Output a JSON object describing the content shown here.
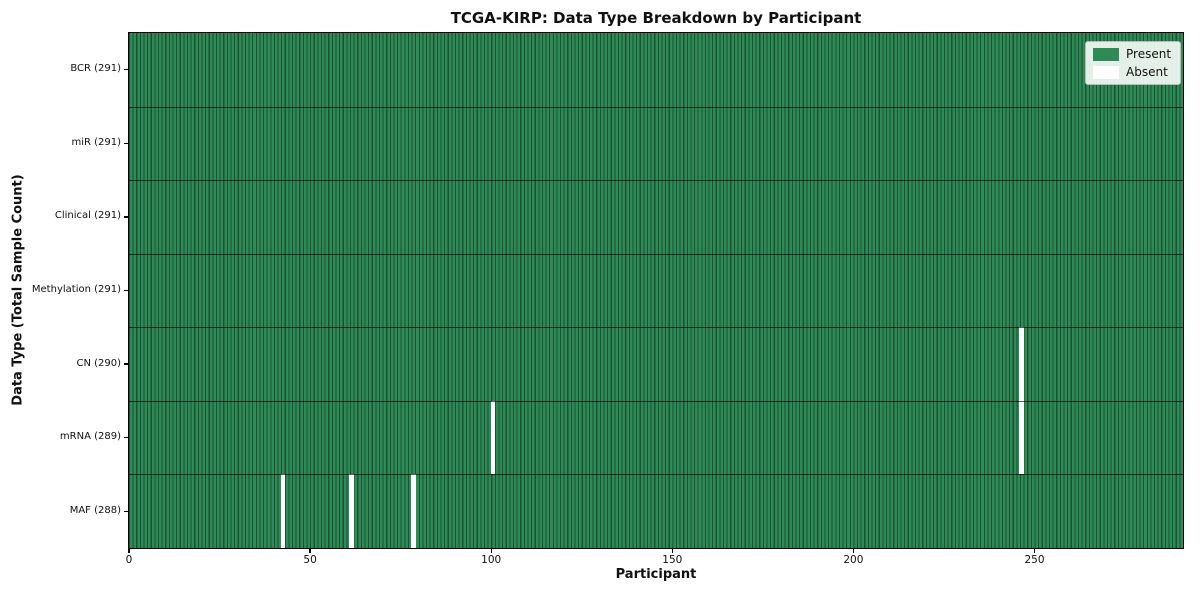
{
  "chart_data": {
    "type": "heatmap",
    "title": "TCGA-KIRP: Data Type Breakdown by Participant",
    "xlabel": "Participant",
    "ylabel": "Data Type (Total Sample Count)",
    "x_range": [
      0,
      291
    ],
    "x_ticks": [
      0,
      50,
      100,
      150,
      200,
      250
    ],
    "n_participants": 291,
    "grid": false,
    "legend_position": "upper right",
    "rows": [
      {
        "name": "BCR",
        "label": "BCR (291)",
        "total": 291,
        "absent_participants": []
      },
      {
        "name": "miR",
        "label": "miR (291)",
        "total": 291,
        "absent_participants": []
      },
      {
        "name": "Clinical",
        "label": "Clinical (291)",
        "total": 291,
        "absent_participants": []
      },
      {
        "name": "Methylation",
        "label": "Methylation (291)",
        "total": 291,
        "absent_participants": []
      },
      {
        "name": "CN",
        "label": "CN (290)",
        "total": 290,
        "absent_participants": [
          246
        ]
      },
      {
        "name": "mRNA",
        "label": "mRNA (289)",
        "total": 289,
        "absent_participants": [
          100,
          246
        ]
      },
      {
        "name": "MAF",
        "label": "MAF (288)",
        "total": 288,
        "absent_participants": [
          42,
          61,
          78
        ]
      }
    ],
    "legend": [
      {
        "label": "Present",
        "color": "#2e8b57"
      },
      {
        "label": "Absent",
        "color": "#ffffff"
      }
    ],
    "colors": {
      "present": "#2e8b57",
      "absent": "#ffffff",
      "cell_edge": "rgba(0,0,0,0.42)",
      "row_separator": "rgba(0,0,0,0.65)",
      "spine": "#000000"
    }
  }
}
